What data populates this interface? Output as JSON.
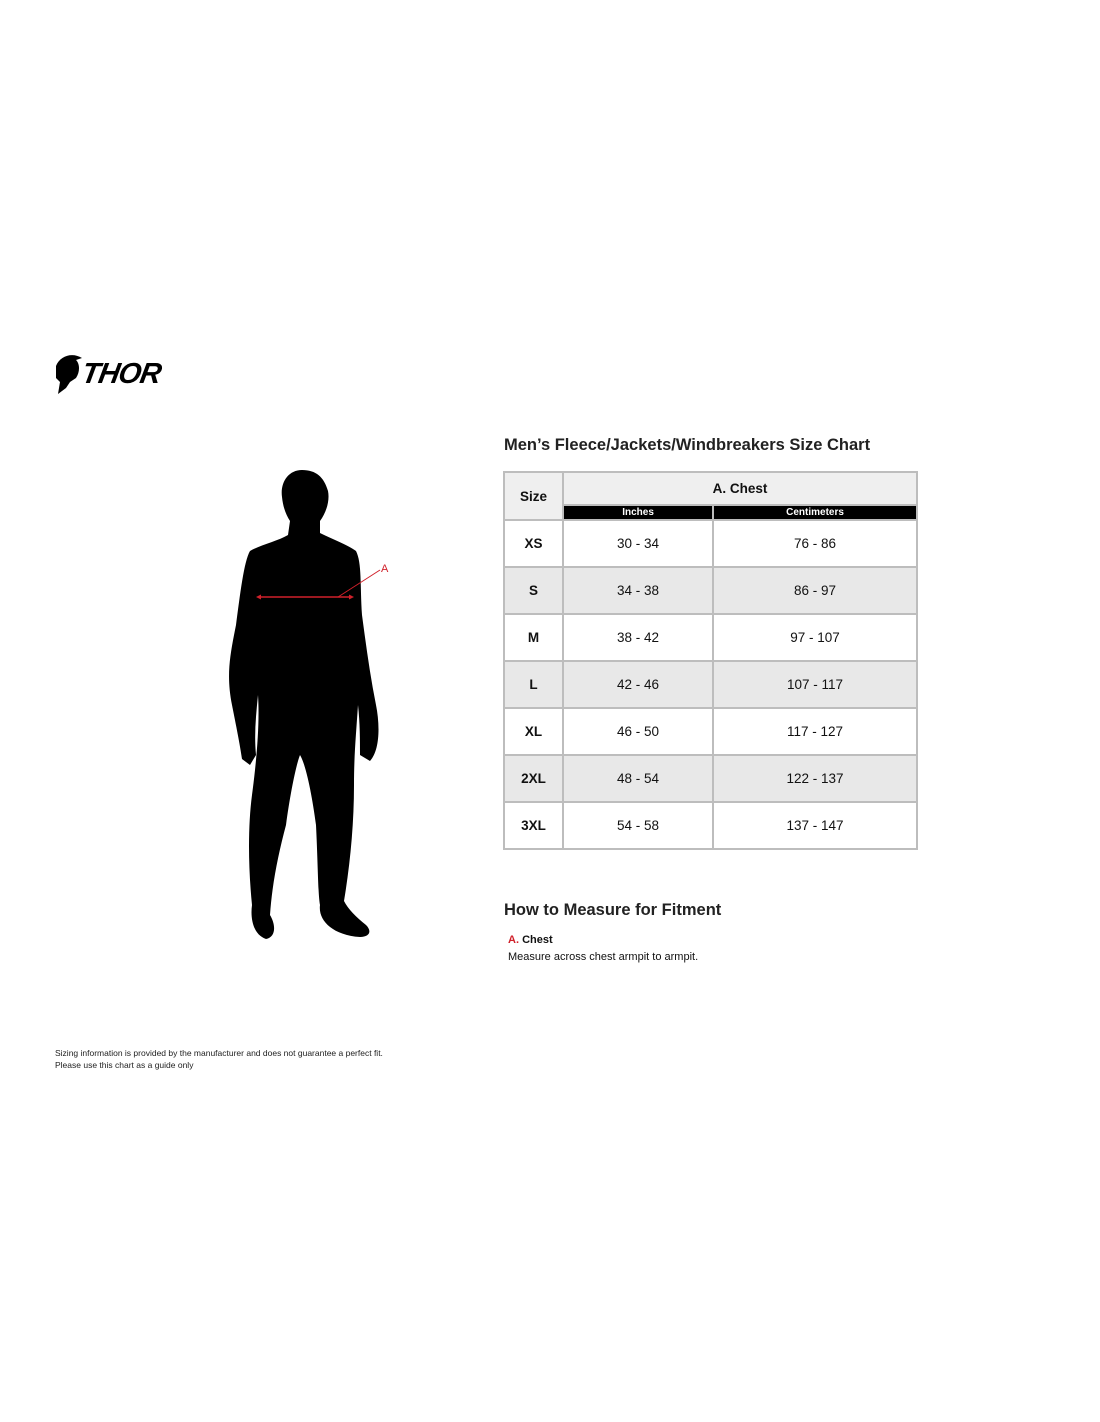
{
  "logo": {
    "text": "THOR"
  },
  "figure": {
    "marker": "A",
    "marker_color": "#d0202a"
  },
  "chart": {
    "title": "Men’s Fleece/Jackets/Windbreakers Size Chart",
    "size_header": "Size",
    "group_header": "A. Chest",
    "sub_headers": [
      "Inches",
      "Centimeters"
    ],
    "rows": [
      {
        "size": "XS",
        "inches": "30 - 34",
        "cm": "76 - 86"
      },
      {
        "size": "S",
        "inches": "34 - 38",
        "cm": "86 - 97"
      },
      {
        "size": "M",
        "inches": "38 - 42",
        "cm": "97 - 107"
      },
      {
        "size": "L",
        "inches": "42 - 46",
        "cm": "107 - 117"
      },
      {
        "size": "XL",
        "inches": "46 - 50",
        "cm": "117 - 127"
      },
      {
        "size": "2XL",
        "inches": "48 - 54",
        "cm": "122 - 137"
      },
      {
        "size": "3XL",
        "inches": "54 - 58",
        "cm": "137 - 147"
      }
    ]
  },
  "measure": {
    "title": "How to Measure for Fitment",
    "letter": "A.",
    "label": "Chest",
    "description": "Measure across chest armpit to armpit."
  },
  "disclaimer": {
    "line1": "Sizing information is provided by the manufacturer and does not guarantee a perfect fit.",
    "line2": "Please use this chart as a guide only"
  }
}
